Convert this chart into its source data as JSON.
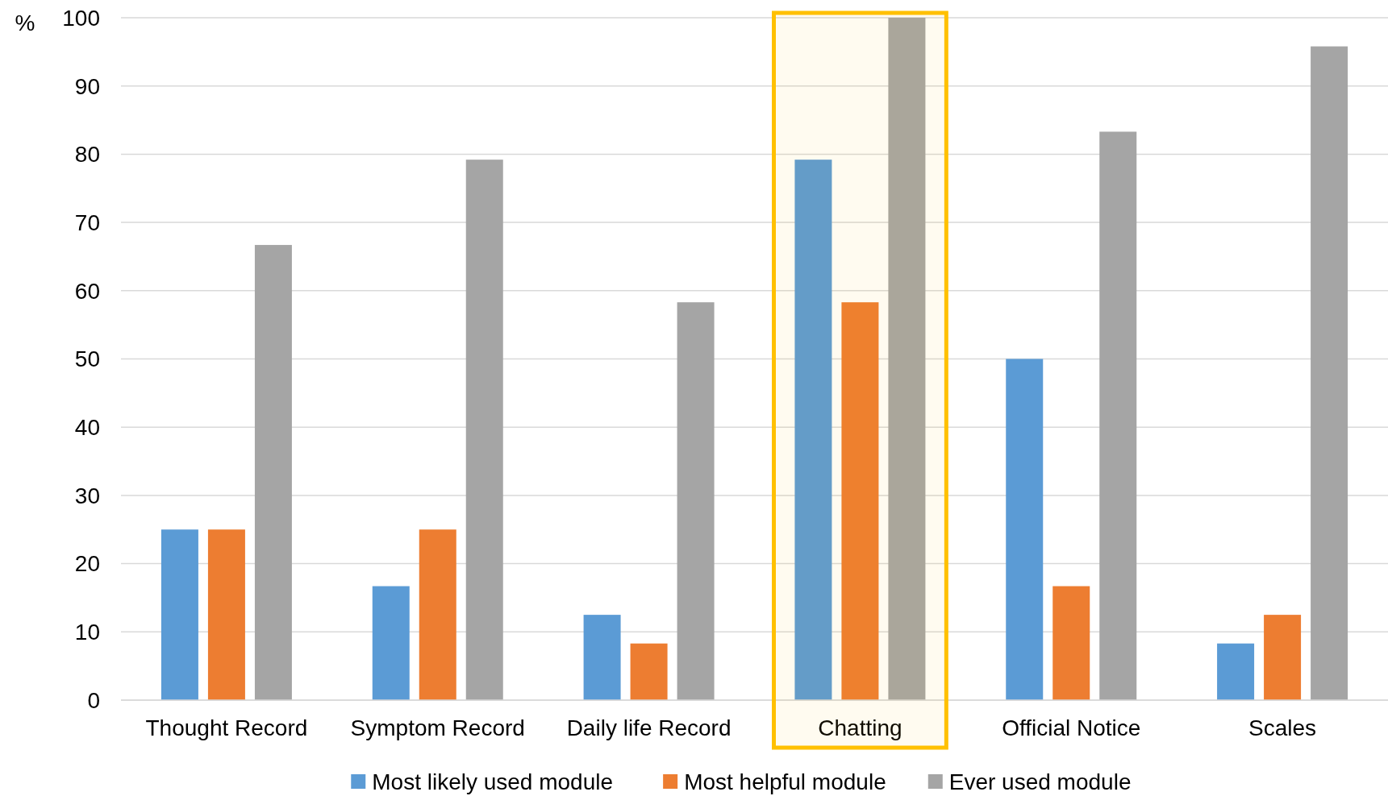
{
  "chart_data": {
    "type": "bar",
    "ylabel": "%",
    "categories": [
      "Thought Record",
      "Symptom Record",
      "Daily life Record",
      "Chatting",
      "Official Notice",
      "Scales"
    ],
    "series": [
      {
        "name": "Most likely used module",
        "color": "#5b9bd5",
        "values": [
          25,
          16.7,
          12.5,
          79.2,
          50,
          8.3
        ]
      },
      {
        "name": "Most helpful module",
        "color": "#ed7d31",
        "values": [
          25,
          25,
          8.3,
          58.3,
          16.7,
          12.5
        ]
      },
      {
        "name": "Ever used module",
        "color": "#a5a5a5",
        "values": [
          66.7,
          79.2,
          58.3,
          100,
          83.3,
          95.8
        ]
      }
    ],
    "ylim": [
      0,
      100
    ],
    "yticks": [
      0,
      10,
      20,
      30,
      40,
      50,
      60,
      70,
      80,
      90,
      100
    ],
    "grid": "y",
    "legend": "bottom",
    "bands": [
      {
        "axis": "x",
        "from": "Chatting",
        "to": "Chatting",
        "color": "#ffc000"
      }
    ]
  }
}
